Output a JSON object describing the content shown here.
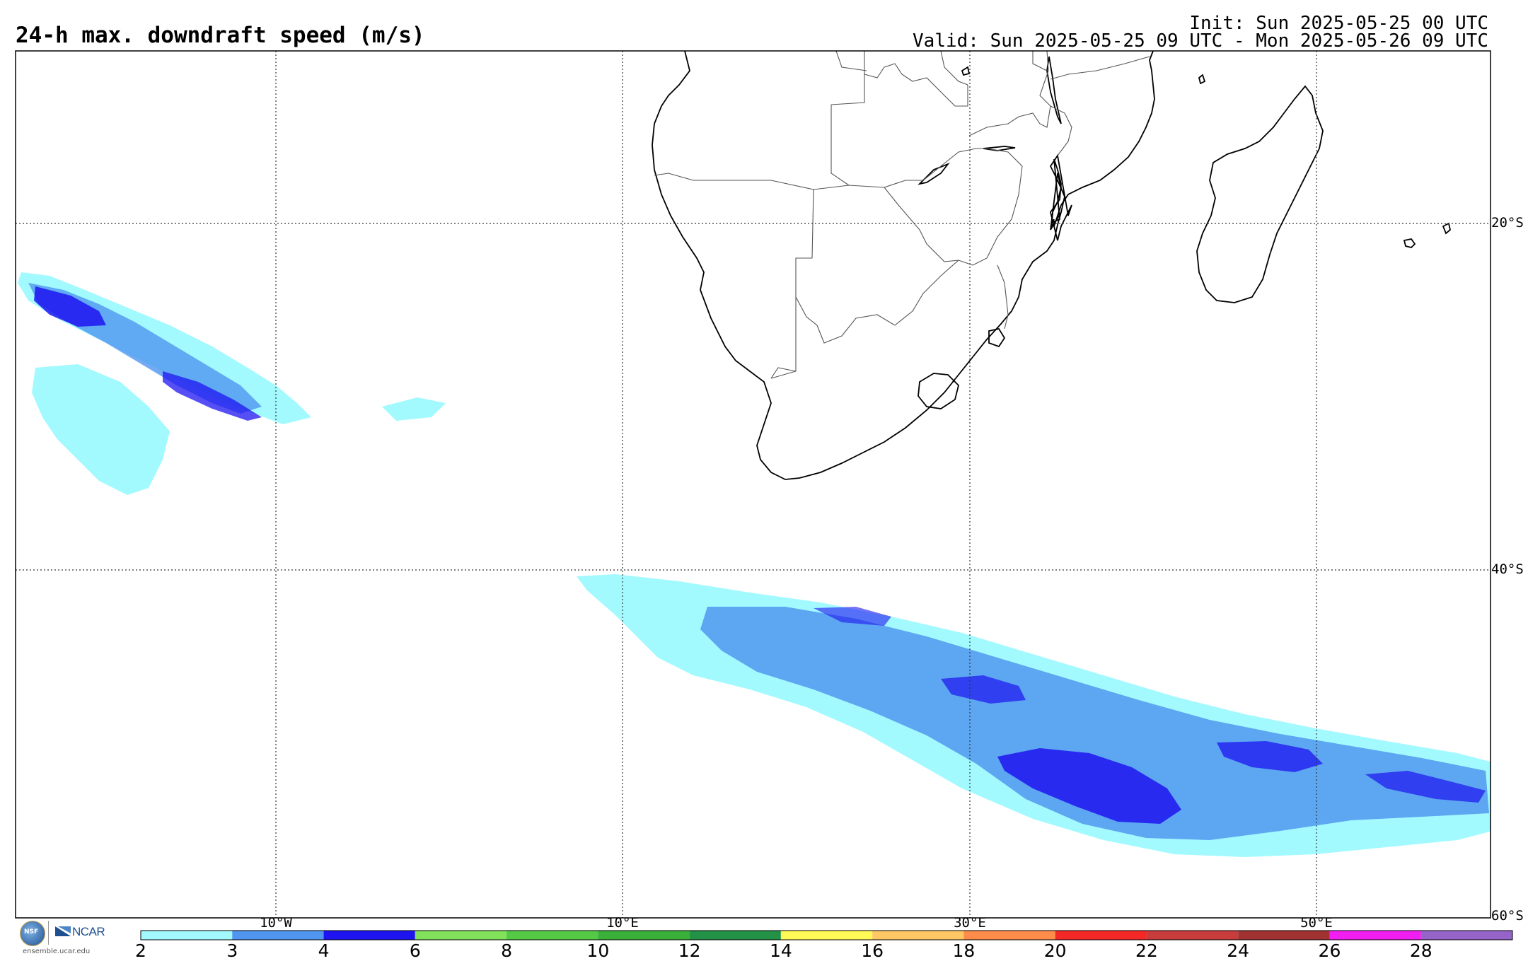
{
  "header": {
    "title": "24-h max. downdraft speed (m/s)",
    "init": "Init: Sun 2025-05-25 00 UTC",
    "valid": "Valid: Sun 2025-05-25 09 UTC - Mon 2025-05-26 09 UTC"
  },
  "map": {
    "lon_range": [
      -25,
      60
    ],
    "lat_range": [
      -10,
      -60
    ],
    "lat_labels": [
      "20°S",
      "40°S",
      "60°S"
    ],
    "lon_labels": [
      "10°W",
      "10°E",
      "30°E",
      "50°E"
    ],
    "grid_lats": [
      -20,
      -40
    ],
    "grid_lons": [
      -10,
      10,
      30,
      50
    ],
    "field_regions": [
      {
        "name": "South Atlantic cluster",
        "lat": -25,
        "lon": -18
      },
      {
        "name": "Southern Ocean band",
        "lat": -48,
        "lon": 35
      }
    ]
  },
  "colorbar": {
    "labels": [
      "2",
      "3",
      "4",
      "6",
      "8",
      "10",
      "12",
      "14",
      "16",
      "18",
      "20",
      "22",
      "24",
      "26",
      "28"
    ],
    "colors": [
      "#a2faff",
      "#5096f0",
      "#1e14f0",
      "#82e15a",
      "#55c846",
      "#3aaf3a",
      "#239146",
      "#fffa55",
      "#ffc864",
      "#ff8c4b",
      "#f52828",
      "#c83c3c",
      "#a03232",
      "#f01ef0",
      "#9664c8"
    ]
  },
  "logo": {
    "nsf": "NSF",
    "ncar": "NCAR",
    "url": "ensemble.ucar.edu"
  }
}
